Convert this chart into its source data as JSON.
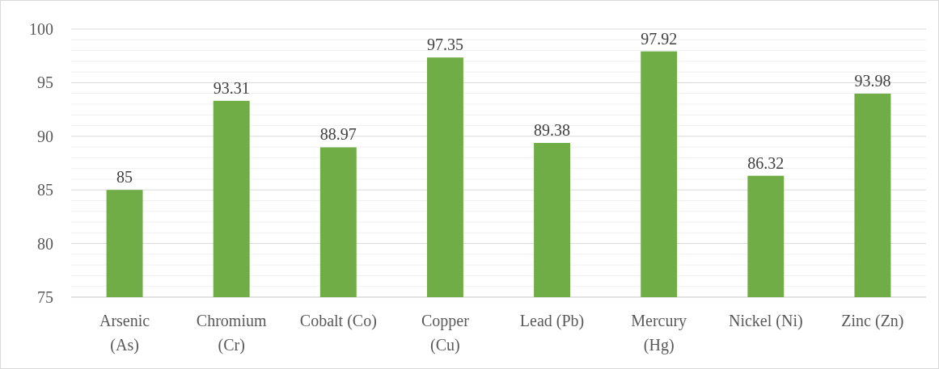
{
  "chart_data": {
    "type": "bar",
    "categories": [
      "Arsenic\n(As)",
      "Chromium\n(Cr)",
      "Cobalt (Co)",
      "Copper\n(Cu)",
      "Lead (Pb)",
      "Mercury\n(Hg)",
      "Nickel (Ni)",
      "Zinc (Zn)"
    ],
    "values": [
      85,
      93.31,
      88.97,
      97.35,
      89.38,
      97.92,
      86.32,
      93.98
    ],
    "color": "#70ad47",
    "ylim": [
      75,
      100
    ],
    "yticks": [
      75,
      {
        "value": 76,
        "label": null
      },
      {
        "value": 77,
        "label": null
      },
      {
        "value": 78,
        "label": null
      },
      {
        "value": 79,
        "label": null
      },
      80,
      {
        "value": 81,
        "label": null
      },
      {
        "value": 82,
        "label": null
      },
      {
        "value": 83,
        "label": null
      },
      {
        "value": 84,
        "label": null
      },
      85,
      {
        "value": 86,
        "label": null
      },
      {
        "value": 87,
        "label": null
      },
      {
        "value": 88,
        "label": null
      },
      {
        "value": 89,
        "label": null
      },
      90,
      {
        "value": 91,
        "label": null
      },
      {
        "value": 92,
        "label": null
      },
      {
        "value": 93,
        "label": null
      },
      {
        "value": 94,
        "label": null
      },
      95,
      {
        "value": 96,
        "label": null
      },
      {
        "value": 97,
        "label": null
      },
      {
        "value": 98,
        "label": null
      },
      {
        "value": 99,
        "label": null
      },
      100
    ],
    "grid": "y",
    "data_labels": true
  }
}
